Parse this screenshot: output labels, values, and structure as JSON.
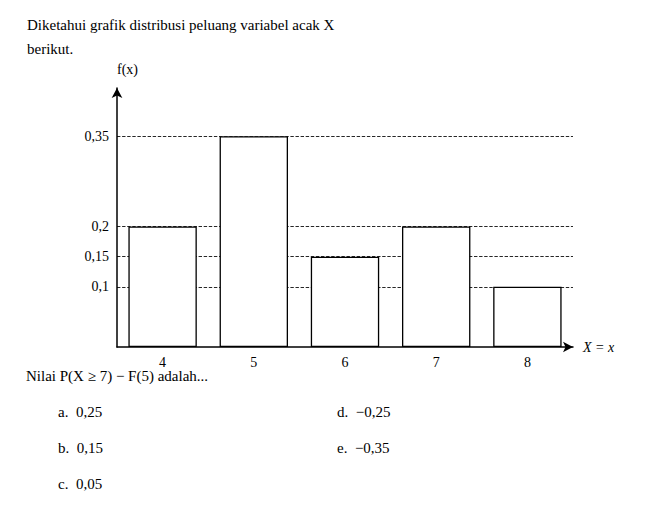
{
  "chart_data": {
    "type": "bar",
    "title": "Diketahui grafik distribusi peluang variabel acak X\nberikut.",
    "categories": [
      4,
      5,
      6,
      7,
      8
    ],
    "values": [
      0.2,
      0.35,
      0.15,
      0.2,
      0.1
    ],
    "color": "#ffffff",
    "xlabel": "X = x",
    "ylabel": "f(x)",
    "ylim": [
      0,
      0.43
    ],
    "yticks": [
      {
        "value": 0.1,
        "label": "0,1"
      },
      {
        "value": 0.15,
        "label": "0,15"
      },
      {
        "value": 0.2,
        "label": "0,2"
      },
      {
        "value": 0.35,
        "label": "0,35"
      }
    ],
    "grid": true,
    "annotations": [
      "Nilai P(X ≥ 7) − F(5) adalah...",
      "a.  0,25",
      "b.  0,15",
      "c.  0,05",
      "d.  −0,25",
      "e.  −0,35"
    ]
  }
}
